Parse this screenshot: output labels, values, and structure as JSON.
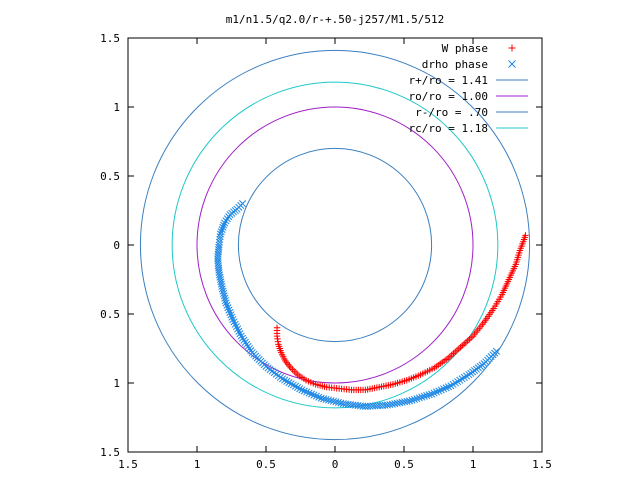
{
  "chart_data": {
    "type": "scatter",
    "title": "m1/n1.5/q2.0/r-+.50-j257/M1.5/512",
    "xlabel": "",
    "ylabel": "",
    "xlim": [
      -1.5,
      1.5
    ],
    "ylim": [
      -1.5,
      1.5
    ],
    "x_ticks": [
      {
        "value": -1.5,
        "label": "1.5"
      },
      {
        "value": -1.0,
        "label": "1"
      },
      {
        "value": -0.5,
        "label": "0.5"
      },
      {
        "value": 0.0,
        "label": "0"
      },
      {
        "value": 0.5,
        "label": "0.5"
      },
      {
        "value": 1.0,
        "label": "1"
      },
      {
        "value": 1.5,
        "label": "1.5"
      }
    ],
    "y_ticks": [
      {
        "value": 1.5,
        "label": "1.5"
      },
      {
        "value": 1.0,
        "label": "1"
      },
      {
        "value": 0.5,
        "label": "0.5"
      },
      {
        "value": 0.0,
        "label": "0"
      },
      {
        "value": -0.5,
        "label": "0.5"
      },
      {
        "value": -1.0,
        "label": "1"
      },
      {
        "value": -1.5,
        "label": "1.5"
      }
    ],
    "grid": false,
    "legend_position": "top-right",
    "circles": [
      {
        "name": "r+/ro = 1.41",
        "radius": 1.41,
        "color": "#3a7fc0"
      },
      {
        "name": "ro/ro = 1.00",
        "radius": 1.0,
        "color": "#a01fc8"
      },
      {
        "name": "r-/ro = .70",
        "radius": 0.7,
        "color": "#3a7fc0"
      },
      {
        "name": "rc/ro = 1.18",
        "radius": 1.18,
        "color": "#20c8c8"
      }
    ],
    "series": [
      {
        "name": "W phase",
        "marker": "+",
        "color": "#ff0000",
        "points": [
          [
            -0.42,
            -0.6
          ],
          [
            -0.42,
            -0.66
          ],
          [
            -0.41,
            -0.72
          ],
          [
            -0.39,
            -0.78
          ],
          [
            -0.36,
            -0.84
          ],
          [
            -0.32,
            -0.89
          ],
          [
            -0.27,
            -0.94
          ],
          [
            -0.21,
            -0.98
          ],
          [
            -0.14,
            -1.01
          ],
          [
            -0.06,
            -1.03
          ],
          [
            0.03,
            -1.04
          ],
          [
            0.12,
            -1.05
          ],
          [
            0.22,
            -1.05
          ],
          [
            0.32,
            -1.03
          ],
          [
            0.42,
            -1.01
          ],
          [
            0.52,
            -0.98
          ],
          [
            0.62,
            -0.94
          ],
          [
            0.72,
            -0.89
          ],
          [
            0.82,
            -0.82
          ],
          [
            0.91,
            -0.74
          ],
          [
            1.0,
            -0.66
          ],
          [
            1.08,
            -0.56
          ],
          [
            1.15,
            -0.46
          ],
          [
            1.21,
            -0.36
          ],
          [
            1.26,
            -0.25
          ],
          [
            1.31,
            -0.14
          ],
          [
            1.34,
            -0.04
          ],
          [
            1.37,
            0.04
          ],
          [
            1.38,
            0.07
          ]
        ]
      },
      {
        "name": "drho phase",
        "marker": "x",
        "color": "#1e88e5",
        "points": [
          [
            -0.67,
            0.3
          ],
          [
            -0.71,
            0.26
          ],
          [
            -0.76,
            0.22
          ],
          [
            -0.8,
            0.16
          ],
          [
            -0.83,
            0.08
          ],
          [
            -0.84,
            0.0
          ],
          [
            -0.85,
            -0.1
          ],
          [
            -0.84,
            -0.2
          ],
          [
            -0.82,
            -0.3
          ],
          [
            -0.79,
            -0.42
          ],
          [
            -0.74,
            -0.54
          ],
          [
            -0.68,
            -0.66
          ],
          [
            -0.6,
            -0.78
          ],
          [
            -0.5,
            -0.88
          ],
          [
            -0.38,
            -0.97
          ],
          [
            -0.24,
            -1.05
          ],
          [
            -0.1,
            -1.11
          ],
          [
            0.06,
            -1.15
          ],
          [
            0.22,
            -1.17
          ],
          [
            0.38,
            -1.16
          ],
          [
            0.54,
            -1.13
          ],
          [
            0.7,
            -1.08
          ],
          [
            0.84,
            -1.02
          ],
          [
            0.97,
            -0.94
          ],
          [
            1.08,
            -0.86
          ],
          [
            1.17,
            -0.77
          ]
        ]
      }
    ]
  }
}
